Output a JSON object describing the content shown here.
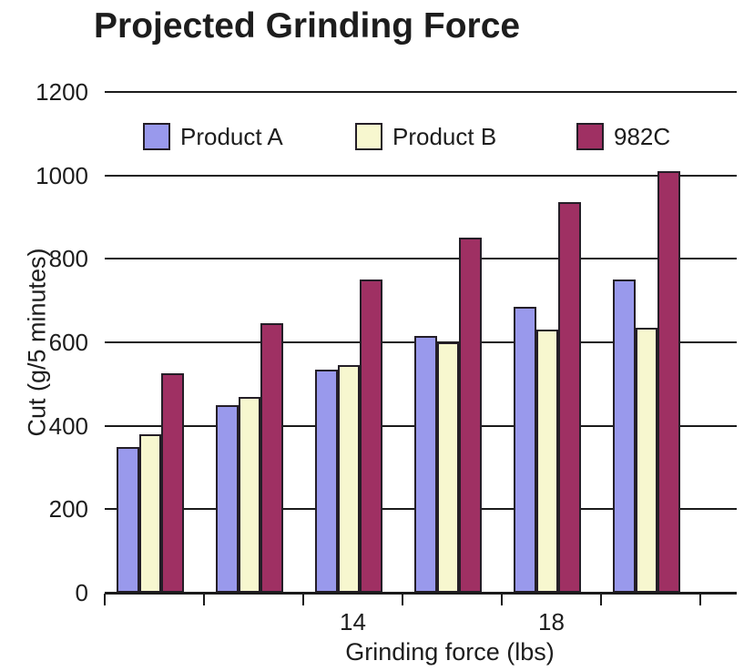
{
  "chart_data": {
    "type": "bar",
    "title": "Projected Grinding Force",
    "xlabel": "Grinding force (lbs)",
    "ylabel": "Cut (g/5 minutes)",
    "ylim": [
      0,
      1200
    ],
    "yticks": [
      0,
      200,
      400,
      600,
      800,
      1000,
      1200
    ],
    "group_labels": [
      "",
      "",
      "14",
      "",
      "18",
      ""
    ],
    "series": [
      {
        "name": "Product A",
        "color": "#9999EC",
        "values": [
          350,
          450,
          535,
          615,
          685,
          750
        ]
      },
      {
        "name": "Product B",
        "color": "#F7F7CF",
        "values": [
          380,
          470,
          545,
          600,
          630,
          635
        ]
      },
      {
        "name": "982C",
        "color": "#9F3063",
        "values": [
          525,
          645,
          750,
          850,
          935,
          1010
        ]
      }
    ],
    "bar_border_color": "#241E27",
    "axis_color": "#1B1B1B",
    "text_color": "#1D1D1D",
    "grid": true,
    "legend_position": "top-inside"
  }
}
